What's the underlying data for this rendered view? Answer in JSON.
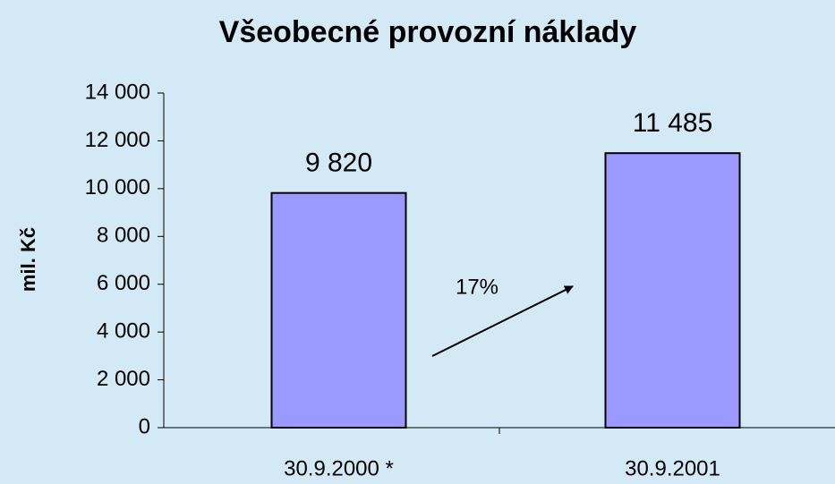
{
  "chart_data": {
    "type": "bar",
    "title": "Všeobecné provozní náklady",
    "y_label": "mil. Kč",
    "categories": [
      "30.9.2000 *",
      "30.9.2001"
    ],
    "values": [
      9820,
      11485
    ],
    "value_labels": [
      "9 820",
      "11 485"
    ],
    "color": "#9999ff",
    "ylim": [
      0,
      14000
    ],
    "yticks": [
      0,
      {
        "value": 2000,
        "label": "2 000"
      },
      {
        "value": 4000,
        "label": "4 000"
      },
      {
        "value": 6000,
        "label": "6 000"
      },
      {
        "value": 8000,
        "label": "8 000"
      },
      {
        "value": 10000,
        "label": "10 000"
      },
      {
        "value": 12000,
        "label": "12 000"
      },
      {
        "value": 14000,
        "label": "14 000"
      }
    ],
    "annotation": "17%",
    "grid": false
  }
}
